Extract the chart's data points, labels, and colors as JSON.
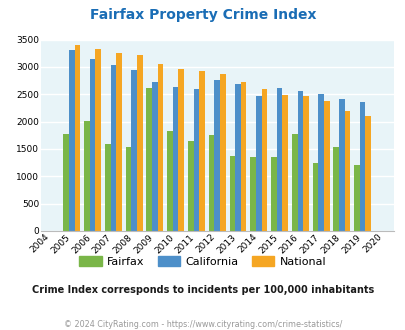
{
  "title": "Fairfax Property Crime Index",
  "years": [
    2004,
    2005,
    2006,
    2007,
    2008,
    2009,
    2010,
    2011,
    2012,
    2013,
    2014,
    2015,
    2016,
    2017,
    2018,
    2019,
    2020
  ],
  "fairfax": [
    0,
    1780,
    2010,
    1600,
    1530,
    2620,
    1820,
    1640,
    1750,
    1380,
    1360,
    1360,
    1770,
    1240,
    1530,
    1210,
    0
  ],
  "california": [
    0,
    3310,
    3150,
    3040,
    2950,
    2720,
    2630,
    2590,
    2760,
    2680,
    2470,
    2620,
    2560,
    2510,
    2410,
    2360,
    0
  ],
  "national": [
    0,
    3400,
    3330,
    3260,
    3210,
    3050,
    2960,
    2920,
    2870,
    2720,
    2600,
    2490,
    2460,
    2380,
    2200,
    2110,
    0
  ],
  "fairfax_color": "#7ab648",
  "california_color": "#4d8fc9",
  "national_color": "#f5a623",
  "bg_color": "#e8f4f8",
  "ylim": [
    0,
    3500
  ],
  "yticks": [
    0,
    500,
    1000,
    1500,
    2000,
    2500,
    3000,
    3500
  ],
  "grid_color": "#ffffff",
  "subtitle": "Crime Index corresponds to incidents per 100,000 inhabitants",
  "footer": "© 2024 CityRating.com - https://www.cityrating.com/crime-statistics/",
  "title_color": "#1a6db5",
  "subtitle_color": "#1a1a1a",
  "footer_color": "#999999",
  "bar_width": 0.27
}
